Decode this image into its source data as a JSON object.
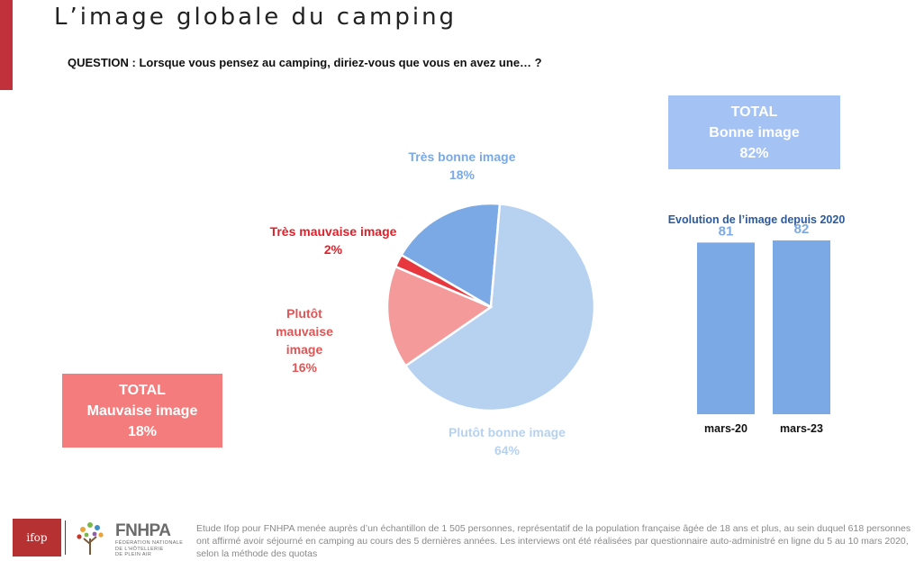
{
  "slide": {
    "title": "L’image globale du camping",
    "question": "QUESTION : Lorsque vous pensez au camping, diriez-vous que vous en avez une… ?"
  },
  "colors": {
    "accent": "#c0313c",
    "good_total_box": "#a4c2f4",
    "bad_total_box": "#f47c7c",
    "bar_fill": "#7aa9e6",
    "bar_title": "#2c5a9c"
  },
  "totals": {
    "good": {
      "line1": "TOTAL",
      "line2": "Bonne image",
      "line3": "82%"
    },
    "bad": {
      "line1": "TOTAL",
      "line2": "Mauvaise image",
      "line3": "18%"
    }
  },
  "chart_data": [
    {
      "type": "pie",
      "slices": [
        {
          "label": "Très bonne image",
          "value": 18,
          "display": "18%",
          "color": "#7aa9e6",
          "label_color": "#7aa9e6"
        },
        {
          "label": "Plutôt bonne image",
          "value": 64,
          "display": "64%",
          "color": "#b7d1f1",
          "label_color": "#b7d1f1"
        },
        {
          "label": "Plutôt mauvaise image",
          "label_lines": [
            "Plutôt",
            "mauvaise",
            "image"
          ],
          "value": 16,
          "display": "16%",
          "color": "#f49a9a",
          "label_color": "#e05555"
        },
        {
          "label": "Très mauvaise image",
          "value": 2,
          "display": "2%",
          "color": "#e8383f",
          "label_color": "#e0202a"
        }
      ]
    },
    {
      "type": "bar",
      "title": "Evolution de l’image depuis 2020",
      "categories": [
        "mars-20",
        "mars-23"
      ],
      "values": [
        81,
        82
      ],
      "ylim": [
        0,
        100
      ]
    }
  ],
  "footer": {
    "logo_ifop": "ifop",
    "logo_fnhpa": "FNHPA",
    "logo_fnhpa_sub": [
      "FÉDÉRATION NATIONALE",
      "DE L'HÔTELLERIE",
      "DE PLEIN AIR"
    ],
    "note": "Etude Ifop pour FNHPA menée auprès d’un échantillon de 1 505 personnes, représentatif de la population française âgée de 18 ans et plus, au sein duquel 618 personnes ont affirmé avoir séjourné en camping au cours des 5 dernières années. Les interviews ont été réalisées par questionnaire auto-administré en ligne du 5 au 10 mars 2020, selon la méthode des quotas"
  }
}
